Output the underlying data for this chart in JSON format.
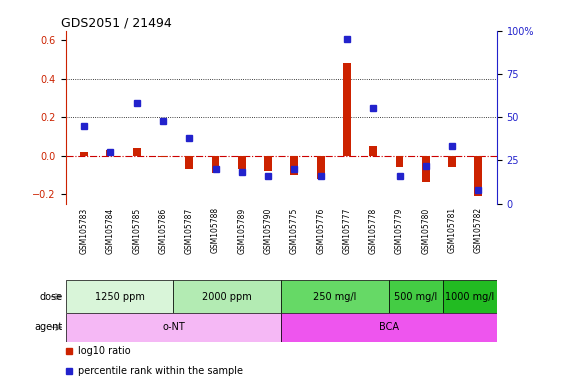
{
  "title": "GDS2051 / 21494",
  "samples": [
    "GSM105783",
    "GSM105784",
    "GSM105785",
    "GSM105786",
    "GSM105787",
    "GSM105788",
    "GSM105789",
    "GSM105790",
    "GSM105775",
    "GSM105776",
    "GSM105777",
    "GSM105778",
    "GSM105779",
    "GSM105780",
    "GSM105781",
    "GSM105782"
  ],
  "log10_ratio": [
    0.02,
    0.03,
    0.04,
    -0.01,
    -0.07,
    -0.09,
    -0.07,
    -0.08,
    -0.1,
    -0.12,
    0.48,
    0.05,
    -0.06,
    -0.14,
    -0.06,
    -0.21
  ],
  "percentile_rank": [
    45,
    30,
    58,
    48,
    38,
    20,
    18,
    16,
    20,
    16,
    95,
    55,
    16,
    22,
    33,
    8
  ],
  "dose_groups": [
    {
      "label": "1250 ppm",
      "start": 0,
      "end": 4,
      "color": "#d9f5d9"
    },
    {
      "label": "2000 ppm",
      "start": 4,
      "end": 8,
      "color": "#b3ebb3"
    },
    {
      "label": "250 mg/l",
      "start": 8,
      "end": 12,
      "color": "#66d966"
    },
    {
      "label": "500 mg/l",
      "start": 12,
      "end": 14,
      "color": "#44cc44"
    },
    {
      "label": "1000 mg/l",
      "start": 14,
      "end": 16,
      "color": "#22bb22"
    }
  ],
  "agent_groups": [
    {
      "label": "o-NT",
      "start": 0,
      "end": 8,
      "color": "#f5b8f5"
    },
    {
      "label": "BCA",
      "start": 8,
      "end": 16,
      "color": "#ee55ee"
    }
  ],
  "ylim_left": [
    -0.25,
    0.65
  ],
  "ylim_right": [
    0,
    100
  ],
  "yticks_left": [
    -0.2,
    0.0,
    0.2,
    0.4,
    0.6
  ],
  "yticks_right": [
    0,
    25,
    50,
    75,
    100
  ],
  "bar_color_red": "#cc2200",
  "bar_color_blue": "#2222cc",
  "legend_red": "log10 ratio",
  "legend_blue": "percentile rank within the sample",
  "hline_color": "#cc0000",
  "grid_color": "#000000"
}
